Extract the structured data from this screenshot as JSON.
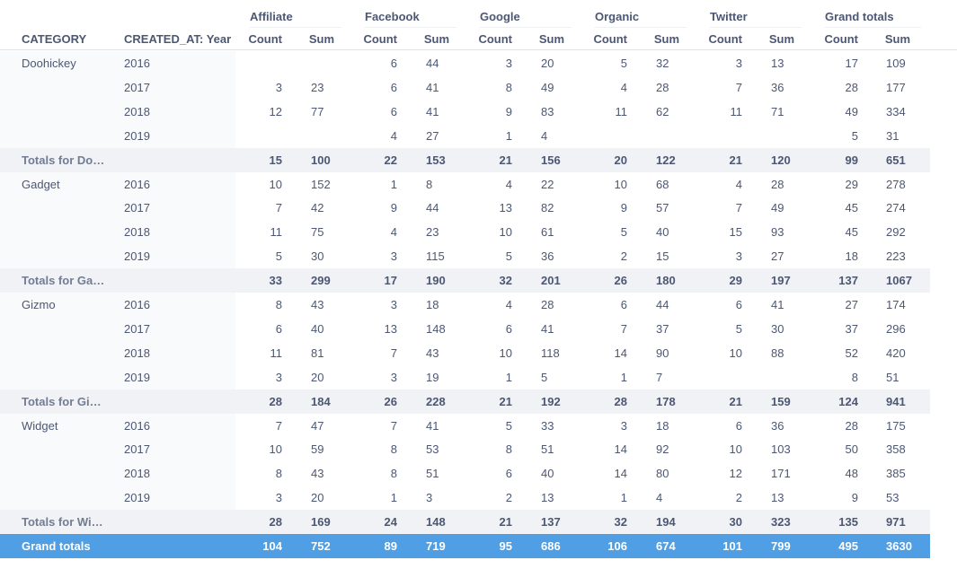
{
  "header": {
    "sources": [
      "Affiliate",
      "Facebook",
      "Google",
      "Organic",
      "Twitter",
      "Grand totals"
    ],
    "category_label": "CATEGORY",
    "year_label": "CREATED_AT: Year",
    "count_label": "Count",
    "sum_label": "Sum"
  },
  "groups": [
    {
      "category": "Doohickey",
      "rows": [
        {
          "year": "2016",
          "values": [
            "",
            "",
            "6",
            "44",
            "3",
            "20",
            "5",
            "32",
            "3",
            "13",
            "17",
            "109"
          ]
        },
        {
          "year": "2017",
          "values": [
            "3",
            "23",
            "6",
            "41",
            "8",
            "49",
            "4",
            "28",
            "7",
            "36",
            "28",
            "177"
          ]
        },
        {
          "year": "2018",
          "values": [
            "12",
            "77",
            "6",
            "41",
            "9",
            "83",
            "11",
            "62",
            "11",
            "71",
            "49",
            "334"
          ]
        },
        {
          "year": "2019",
          "values": [
            "",
            "",
            "4",
            "27",
            "1",
            "4",
            "",
            "",
            "",
            "",
            "5",
            "31"
          ]
        }
      ],
      "total_label": "Totals for Do…",
      "totals": [
        "15",
        "100",
        "22",
        "153",
        "21",
        "156",
        "20",
        "122",
        "21",
        "120",
        "99",
        "651"
      ]
    },
    {
      "category": "Gadget",
      "rows": [
        {
          "year": "2016",
          "values": [
            "10",
            "152",
            "1",
            "8",
            "4",
            "22",
            "10",
            "68",
            "4",
            "28",
            "29",
            "278"
          ]
        },
        {
          "year": "2017",
          "values": [
            "7",
            "42",
            "9",
            "44",
            "13",
            "82",
            "9",
            "57",
            "7",
            "49",
            "45",
            "274"
          ]
        },
        {
          "year": "2018",
          "values": [
            "11",
            "75",
            "4",
            "23",
            "10",
            "61",
            "5",
            "40",
            "15",
            "93",
            "45",
            "292"
          ]
        },
        {
          "year": "2019",
          "values": [
            "5",
            "30",
            "3",
            "115",
            "5",
            "36",
            "2",
            "15",
            "3",
            "27",
            "18",
            "223"
          ]
        }
      ],
      "total_label": "Totals for Ga…",
      "totals": [
        "33",
        "299",
        "17",
        "190",
        "32",
        "201",
        "26",
        "180",
        "29",
        "197",
        "137",
        "1067"
      ]
    },
    {
      "category": "Gizmo",
      "rows": [
        {
          "year": "2016",
          "values": [
            "8",
            "43",
            "3",
            "18",
            "4",
            "28",
            "6",
            "44",
            "6",
            "41",
            "27",
            "174"
          ]
        },
        {
          "year": "2017",
          "values": [
            "6",
            "40",
            "13",
            "148",
            "6",
            "41",
            "7",
            "37",
            "5",
            "30",
            "37",
            "296"
          ]
        },
        {
          "year": "2018",
          "values": [
            "11",
            "81",
            "7",
            "43",
            "10",
            "118",
            "14",
            "90",
            "10",
            "88",
            "52",
            "420"
          ]
        },
        {
          "year": "2019",
          "values": [
            "3",
            "20",
            "3",
            "19",
            "1",
            "5",
            "1",
            "7",
            "",
            "",
            "8",
            "51"
          ]
        }
      ],
      "total_label": "Totals for Gi…",
      "totals": [
        "28",
        "184",
        "26",
        "228",
        "21",
        "192",
        "28",
        "178",
        "21",
        "159",
        "124",
        "941"
      ]
    },
    {
      "category": "Widget",
      "rows": [
        {
          "year": "2016",
          "values": [
            "7",
            "47",
            "7",
            "41",
            "5",
            "33",
            "3",
            "18",
            "6",
            "36",
            "28",
            "175"
          ]
        },
        {
          "year": "2017",
          "values": [
            "10",
            "59",
            "8",
            "53",
            "8",
            "51",
            "14",
            "92",
            "10",
            "103",
            "50",
            "358"
          ]
        },
        {
          "year": "2018",
          "values": [
            "8",
            "43",
            "8",
            "51",
            "6",
            "40",
            "14",
            "80",
            "12",
            "171",
            "48",
            "385"
          ]
        },
        {
          "year": "2019",
          "values": [
            "3",
            "20",
            "1",
            "3",
            "2",
            "13",
            "1",
            "4",
            "2",
            "13",
            "9",
            "53"
          ]
        }
      ],
      "total_label": "Totals for Wi…",
      "totals": [
        "28",
        "169",
        "24",
        "148",
        "21",
        "137",
        "32",
        "194",
        "30",
        "323",
        "135",
        "971"
      ]
    }
  ],
  "grand_totals": {
    "label": "Grand totals",
    "values": [
      "104",
      "752",
      "89",
      "719",
      "95",
      "686",
      "106",
      "674",
      "101",
      "799",
      "495",
      "3630"
    ]
  }
}
